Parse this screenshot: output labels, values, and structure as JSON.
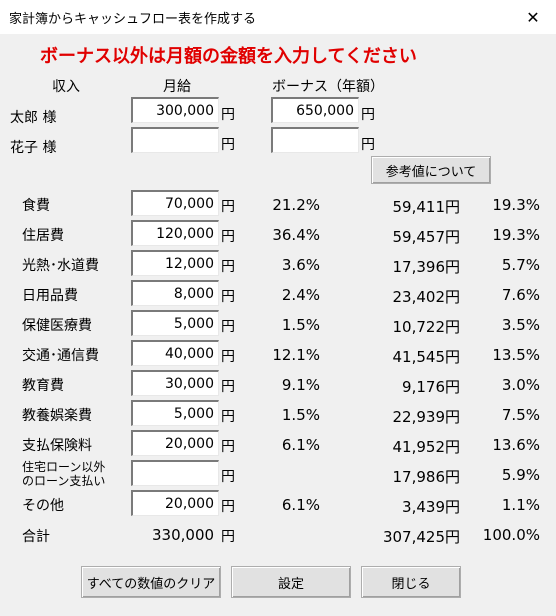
{
  "window": {
    "title": "家計簿からキャッシュフロー表を作成する",
    "close_glyph": "✕"
  },
  "notice": "ボーナス以外は月額の金額を入力してください",
  "headers": {
    "income": "収入",
    "monthly": "月給",
    "bonus": "ボーナス（年額）"
  },
  "yen": "円",
  "income": [
    {
      "name": "太郎 様",
      "monthly": "300,000",
      "bonus": "650,000"
    },
    {
      "name": "花子 様",
      "monthly": "",
      "bonus": ""
    }
  ],
  "reference_button": "参考値について",
  "expenses": [
    {
      "name": "食費",
      "value": "70,000",
      "pct": "21.2%",
      "ref_amount": "59,411円",
      "ref_pct": "19.3%"
    },
    {
      "name": "住居費",
      "value": "120,000",
      "pct": "36.4%",
      "ref_amount": "59,457円",
      "ref_pct": "19.3%"
    },
    {
      "name": "光熱･水道費",
      "value": "12,000",
      "pct": "3.6%",
      "ref_amount": "17,396円",
      "ref_pct": "5.7%"
    },
    {
      "name": "日用品費",
      "value": "8,000",
      "pct": "2.4%",
      "ref_amount": "23,402円",
      "ref_pct": "7.6%"
    },
    {
      "name": "保健医療費",
      "value": "5,000",
      "pct": "1.5%",
      "ref_amount": "10,722円",
      "ref_pct": "3.5%"
    },
    {
      "name": "交通･通信費",
      "value": "40,000",
      "pct": "12.1%",
      "ref_amount": "41,545円",
      "ref_pct": "13.5%"
    },
    {
      "name": "教育費",
      "value": "30,000",
      "pct": "9.1%",
      "ref_amount": "9,176円",
      "ref_pct": "3.0%"
    },
    {
      "name": "教養娯楽費",
      "value": "5,000",
      "pct": "1.5%",
      "ref_amount": "22,939円",
      "ref_pct": "7.5%"
    },
    {
      "name": "支払保険料",
      "value": "20,000",
      "pct": "6.1%",
      "ref_amount": "41,952円",
      "ref_pct": "13.6%"
    },
    {
      "name_line1": "住宅ローン以外",
      "name_line2": "のローン支払い",
      "value": "",
      "pct": "",
      "ref_amount": "17,986円",
      "ref_pct": "5.9%"
    },
    {
      "name": "その他",
      "value": "20,000",
      "pct": "6.1%",
      "ref_amount": "3,439円",
      "ref_pct": "1.1%"
    }
  ],
  "total": {
    "label": "合計",
    "value": "330,000",
    "yen": "円",
    "ref_amount": "307,425円",
    "ref_pct": "100.0%"
  },
  "buttons": {
    "clear": "すべての数値のクリア",
    "settings": "設定",
    "close": "閉じる"
  }
}
